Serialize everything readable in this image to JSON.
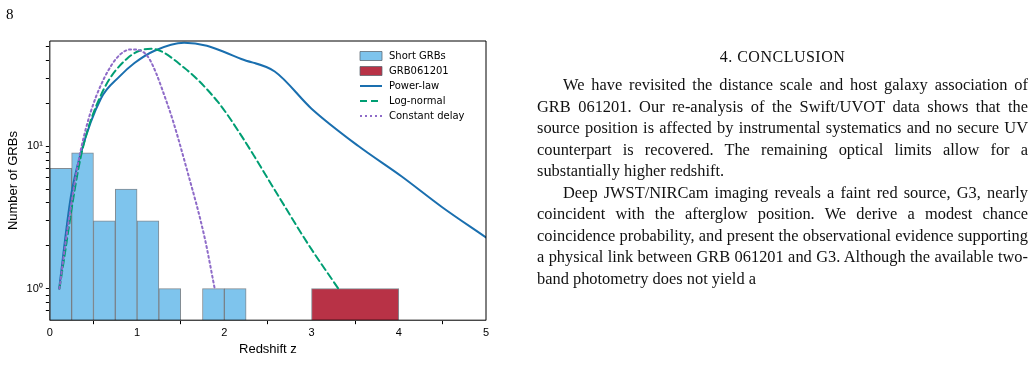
{
  "chart_data": {
    "type": "histogram",
    "xlabel": "Redshift z",
    "ylabel": "Number of GRBs",
    "log": "y",
    "grid": false,
    "legend": "top right",
    "xlim": [
      0,
      5
    ],
    "xticks": [
      0,
      1,
      2,
      3,
      4,
      5
    ],
    "ylim": [
      0.61,
      55
    ],
    "yticks": [
      {
        "value": 0.7,
        "label": null
      },
      {
        "value": 0.8,
        "label": null
      },
      {
        "value": 0.9,
        "label": null
      },
      {
        "value": 1,
        "label": "10⁰"
      },
      {
        "value": 2,
        "label": null
      },
      {
        "value": 3,
        "label": null
      },
      {
        "value": 4,
        "label": null
      },
      {
        "value": 5,
        "label": null
      },
      {
        "value": 6,
        "label": null
      },
      {
        "value": 7,
        "label": null
      },
      {
        "value": 8,
        "label": null
      },
      {
        "value": 9,
        "label": null
      },
      {
        "value": 10,
        "label": "10¹"
      },
      {
        "value": 20,
        "label": null
      },
      {
        "value": 30,
        "label": null
      },
      {
        "value": 40,
        "label": null
      },
      {
        "value": 50,
        "label": null
      }
    ],
    "series": [
      {
        "name": "Short GRBs",
        "type": "histogram",
        "color": "#7ec4ed",
        "bins": [
          0,
          0.25,
          0.5,
          0.75,
          1,
          1.25,
          1.5,
          1.75,
          2,
          2.25
        ],
        "values": [
          7,
          9,
          3,
          5,
          3,
          1,
          null,
          1,
          1
        ]
      },
      {
        "name": "GRB061201",
        "type": "histogram",
        "color": "#b83246",
        "bins": [
          3,
          4
        ],
        "values": [
          1
        ]
      },
      {
        "name": "Power-law",
        "type": "line",
        "color": "#1a6faf",
        "line_style": "solid",
        "x": [
          0.107,
          0.24,
          0.356,
          0.586,
          0.8,
          0.97,
          1.2,
          1.54,
          1.8,
          2.0,
          2.195,
          2.578,
          3.0,
          3.537,
          4.034,
          4.494,
          5.0
        ],
        "values": [
          1.0,
          4.4,
          9.0,
          21.7,
          31,
          38.5,
          47,
          53.5,
          51,
          46,
          41.1,
          33.6,
          18.4,
          10.05,
          6.14,
          3.75,
          2.29
        ]
      },
      {
        "name": "Log-normal",
        "type": "line",
        "color": "#009e73",
        "line_style": "dashed",
        "x": [
          0.11,
          0.356,
          0.586,
          0.893,
          1.161,
          1.544,
          1.927,
          2.195,
          2.578,
          2.962,
          3.307
        ],
        "values": [
          1.0,
          8.5,
          22.9,
          41.8,
          48.5,
          35.5,
          20.5,
          11.9,
          4.94,
          2.05,
          1.0
        ]
      },
      {
        "name": "Constant delay",
        "type": "line",
        "color": "#8e6bc8",
        "line_style": "dotted",
        "x": [
          0.11,
          0.2,
          0.356,
          0.586,
          0.931,
          1.084,
          1.353,
          1.582,
          1.774,
          1.89
        ],
        "values": [
          1.0,
          2.55,
          9.5,
          27,
          48,
          45.4,
          19.4,
          6.5,
          2.29,
          1.0
        ]
      }
    ],
    "annotations": [
      "8",
      "4. CONCLUSION",
      "We have revisited the distance scale and host galaxy association of GRB 061201. Our re-analysis of the Swift/UVOT data shows that the source position is affected by instrumental systematics and no secure UV counterpart is recovered. The remaining optical limits allow for a substantially higher redshift.",
      "Deep JWST/NIRCam imaging reveals a faint red source, G3, nearly coincident with the afterglow position. We derive a modest chance coincidence probability, and present the observational evidence supporting a physical link between GRB 061201 and G3. Although the available two-band photometry does not yield a"
    ]
  }
}
